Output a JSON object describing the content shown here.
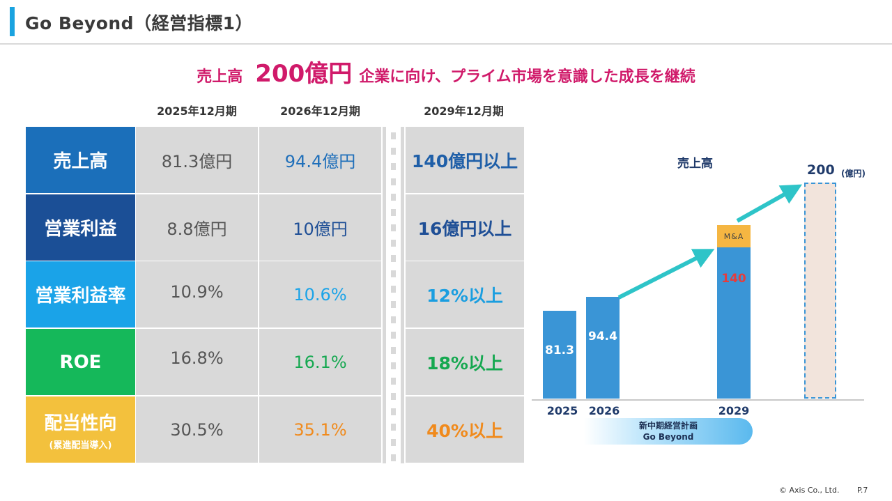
{
  "header": {
    "title": "Go Beyond（経営指標1）"
  },
  "headline": {
    "prefix": "売上高",
    "emphasis": "200億円",
    "suffix": "企業に向け、プライム市場を意識した成長を継続"
  },
  "table": {
    "columns": [
      "2025年12月期",
      "2026年12月期",
      "2029年12月期"
    ],
    "rows": [
      {
        "label": "売上高",
        "sub": "",
        "color": "#1b6fba",
        "values": [
          "81.3億円",
          "94.4億円",
          "140億円以上"
        ],
        "value_colors": [
          "#555555",
          "#1f6fba",
          "#1f5fa8"
        ]
      },
      {
        "label": "営業利益",
        "sub": "",
        "color": "#1b4f96",
        "values": [
          "8.8億円",
          "10億円",
          "16億円以上"
        ],
        "value_colors": [
          "#555555",
          "#1f4f96",
          "#1f4f96"
        ]
      },
      {
        "label": "営業利益率",
        "sub": "",
        "color": "#1aa3e8",
        "values": [
          "10.9%",
          "10.6%",
          "12%以上"
        ],
        "value_colors": [
          "#555555",
          "#1aa3e8",
          "#1a9ee0"
        ]
      },
      {
        "label": "ROE",
        "sub": "",
        "color": "#15b85a",
        "values": [
          "16.8%",
          "16.1%",
          "18%以上"
        ],
        "value_colors": [
          "#555555",
          "#15a850",
          "#15a850"
        ]
      },
      {
        "label": "配当性向",
        "sub": "(累進配当導入)",
        "color": "#f3c13d",
        "values": [
          "30.5%",
          "35.1%",
          "40%以上"
        ],
        "value_colors": [
          "#555555",
          "#f08a1c",
          "#f08a1c"
        ]
      }
    ]
  },
  "chart_data": {
    "type": "bar",
    "title": "売上高",
    "unit": "(億円)",
    "categories": [
      "2025",
      "2026",
      "2029",
      ""
    ],
    "values": [
      81.3,
      94.4,
      140,
      200
    ],
    "value_labels": [
      "81.3",
      "94.4",
      "140",
      "200"
    ],
    "stacked_segment": {
      "label": "M&A",
      "category": "2029"
    },
    "target_bar": {
      "category_index": 3,
      "label": "200",
      "style": "dashed"
    },
    "band": {
      "line1": "新中期経営計画",
      "line2": "Go Beyond"
    },
    "colors": {
      "bar": "#3a95d6",
      "ma": "#f5b642",
      "target_fill": "#f2e4dc",
      "arrow": "#2ec4c8",
      "value_red": "#e53c3c"
    },
    "ylim": [
      0,
      200
    ]
  },
  "footer": {
    "copyright": "© Axis Co., Ltd.",
    "page": "P.7"
  }
}
